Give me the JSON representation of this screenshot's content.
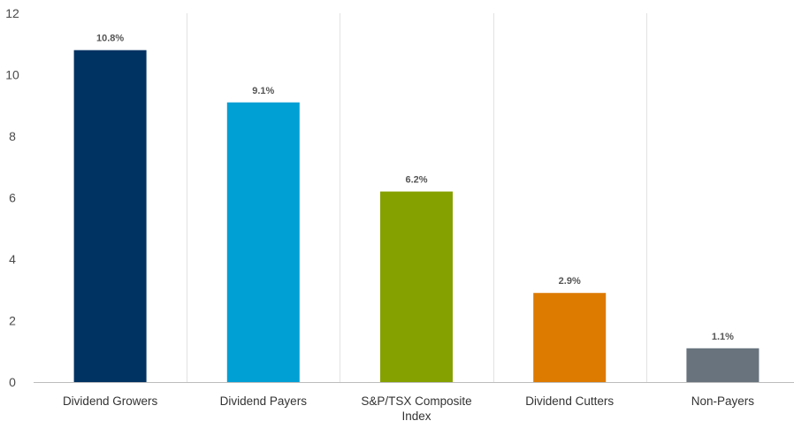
{
  "chart_data": {
    "type": "bar",
    "title": "",
    "xlabel": "",
    "ylabel": "",
    "categories": [
      [
        "Dividend Growers"
      ],
      [
        "Dividend Payers"
      ],
      [
        "S&P/TSX Composite",
        "Index"
      ],
      [
        "Dividend Cutters"
      ],
      [
        "Non-Payers"
      ]
    ],
    "values": [
      10.8,
      9.1,
      6.2,
      2.9,
      1.1
    ],
    "data_labels": [
      "10.8%",
      "9.1%",
      "6.2%",
      "2.9%",
      "1.1%"
    ],
    "colors": [
      "#003262",
      "#009fd4",
      "#84a100",
      "#dd7a00",
      "#68737d"
    ],
    "ylim": [
      0,
      12
    ],
    "yticks": [
      0,
      2,
      4,
      6,
      8,
      10,
      12
    ],
    "grid": "vertical-separators",
    "legend": "none"
  }
}
